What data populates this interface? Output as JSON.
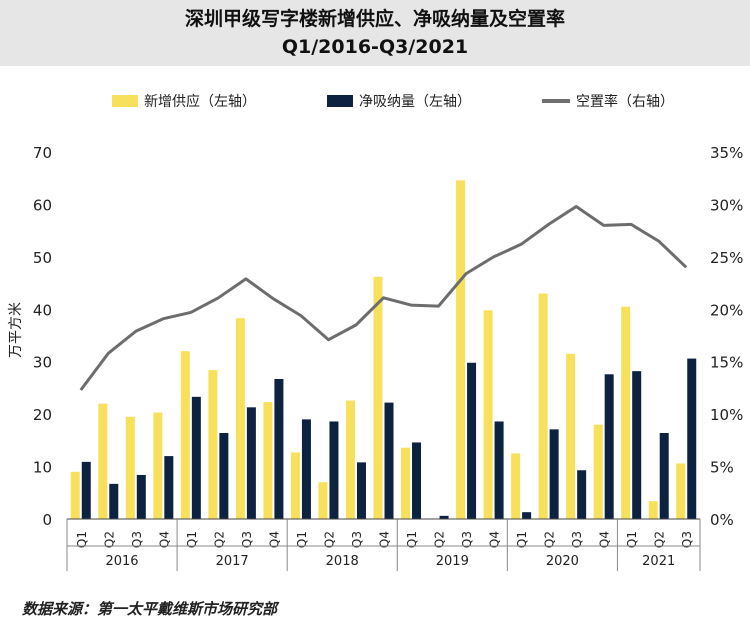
{
  "header": {
    "title_line1": "深圳甲级写字楼新增供应、净吸纳量及空置率",
    "title_line2": "Q1/2016-Q3/2021"
  },
  "legend": {
    "supply": "新增供应（左轴）",
    "absorption": "净吸纳量（左轴）",
    "vacancy": "空置率（右轴）"
  },
  "colors": {
    "supply": "#f7e15c",
    "absorption": "#0d2240",
    "vacancy": "#6d6d6d"
  },
  "source": "数据来源：第一太平戴维斯市场研究部",
  "chart_data": {
    "type": "bar",
    "title": "深圳甲级写字楼新增供应、净吸纳量及空置率",
    "subtitle": "Q1/2016-Q3/2021",
    "ylabel": "万平方米",
    "ylim": [
      0,
      70
    ],
    "yticks": [
      "0",
      "10",
      "20",
      "30",
      "40",
      "50",
      "60",
      "70"
    ],
    "y2lim": [
      0,
      35
    ],
    "y2ticks": [
      "0%",
      "5%",
      "10%",
      "15%",
      "20%",
      "25%",
      "30%",
      "35%"
    ],
    "categories": [
      "Q1",
      "Q2",
      "Q3",
      "Q4",
      "Q1",
      "Q2",
      "Q3",
      "Q4",
      "Q1",
      "Q2",
      "Q3",
      "Q4",
      "Q1",
      "Q2",
      "Q3",
      "Q4",
      "Q1",
      "Q2",
      "Q3",
      "Q4",
      "Q1",
      "Q2",
      "Q3"
    ],
    "years": [
      "2016",
      "2017",
      "2018",
      "2019",
      "2020",
      "2021"
    ],
    "year_quarter_counts": [
      4,
      4,
      4,
      4,
      4,
      3
    ],
    "series": [
      {
        "name": "新增供应（左轴）",
        "axis": "left",
        "kind": "bar",
        "values": [
          9,
          22,
          19.5,
          20.3,
          32,
          28.4,
          38.3,
          22.3,
          12.7,
          7,
          22.6,
          46.2,
          13.6,
          0,
          64.6,
          39.8,
          12.5,
          43,
          31.5,
          18,
          40.5,
          3.4,
          10.6
        ]
      },
      {
        "name": "净吸纳量（左轴）",
        "axis": "left",
        "kind": "bar",
        "values": [
          10.9,
          6.7,
          8.4,
          12,
          23.3,
          16.4,
          21.3,
          26.7,
          19,
          18.6,
          10.8,
          22.2,
          14.6,
          0.6,
          29.8,
          18.6,
          1.3,
          17.1,
          9.3,
          27.6,
          28.2,
          16.4,
          30.6
        ]
      },
      {
        "name": "空置率（右轴）",
        "axis": "right",
        "kind": "line",
        "values": [
          12.3,
          15.8,
          17.9,
          19.1,
          19.7,
          21.1,
          22.9,
          21.0,
          19.4,
          17.1,
          18.5,
          21.1,
          20.4,
          20.3,
          23.4,
          25.0,
          26.2,
          28.1,
          29.8,
          28.0,
          28.1,
          26.5,
          24.0
        ]
      }
    ]
  }
}
